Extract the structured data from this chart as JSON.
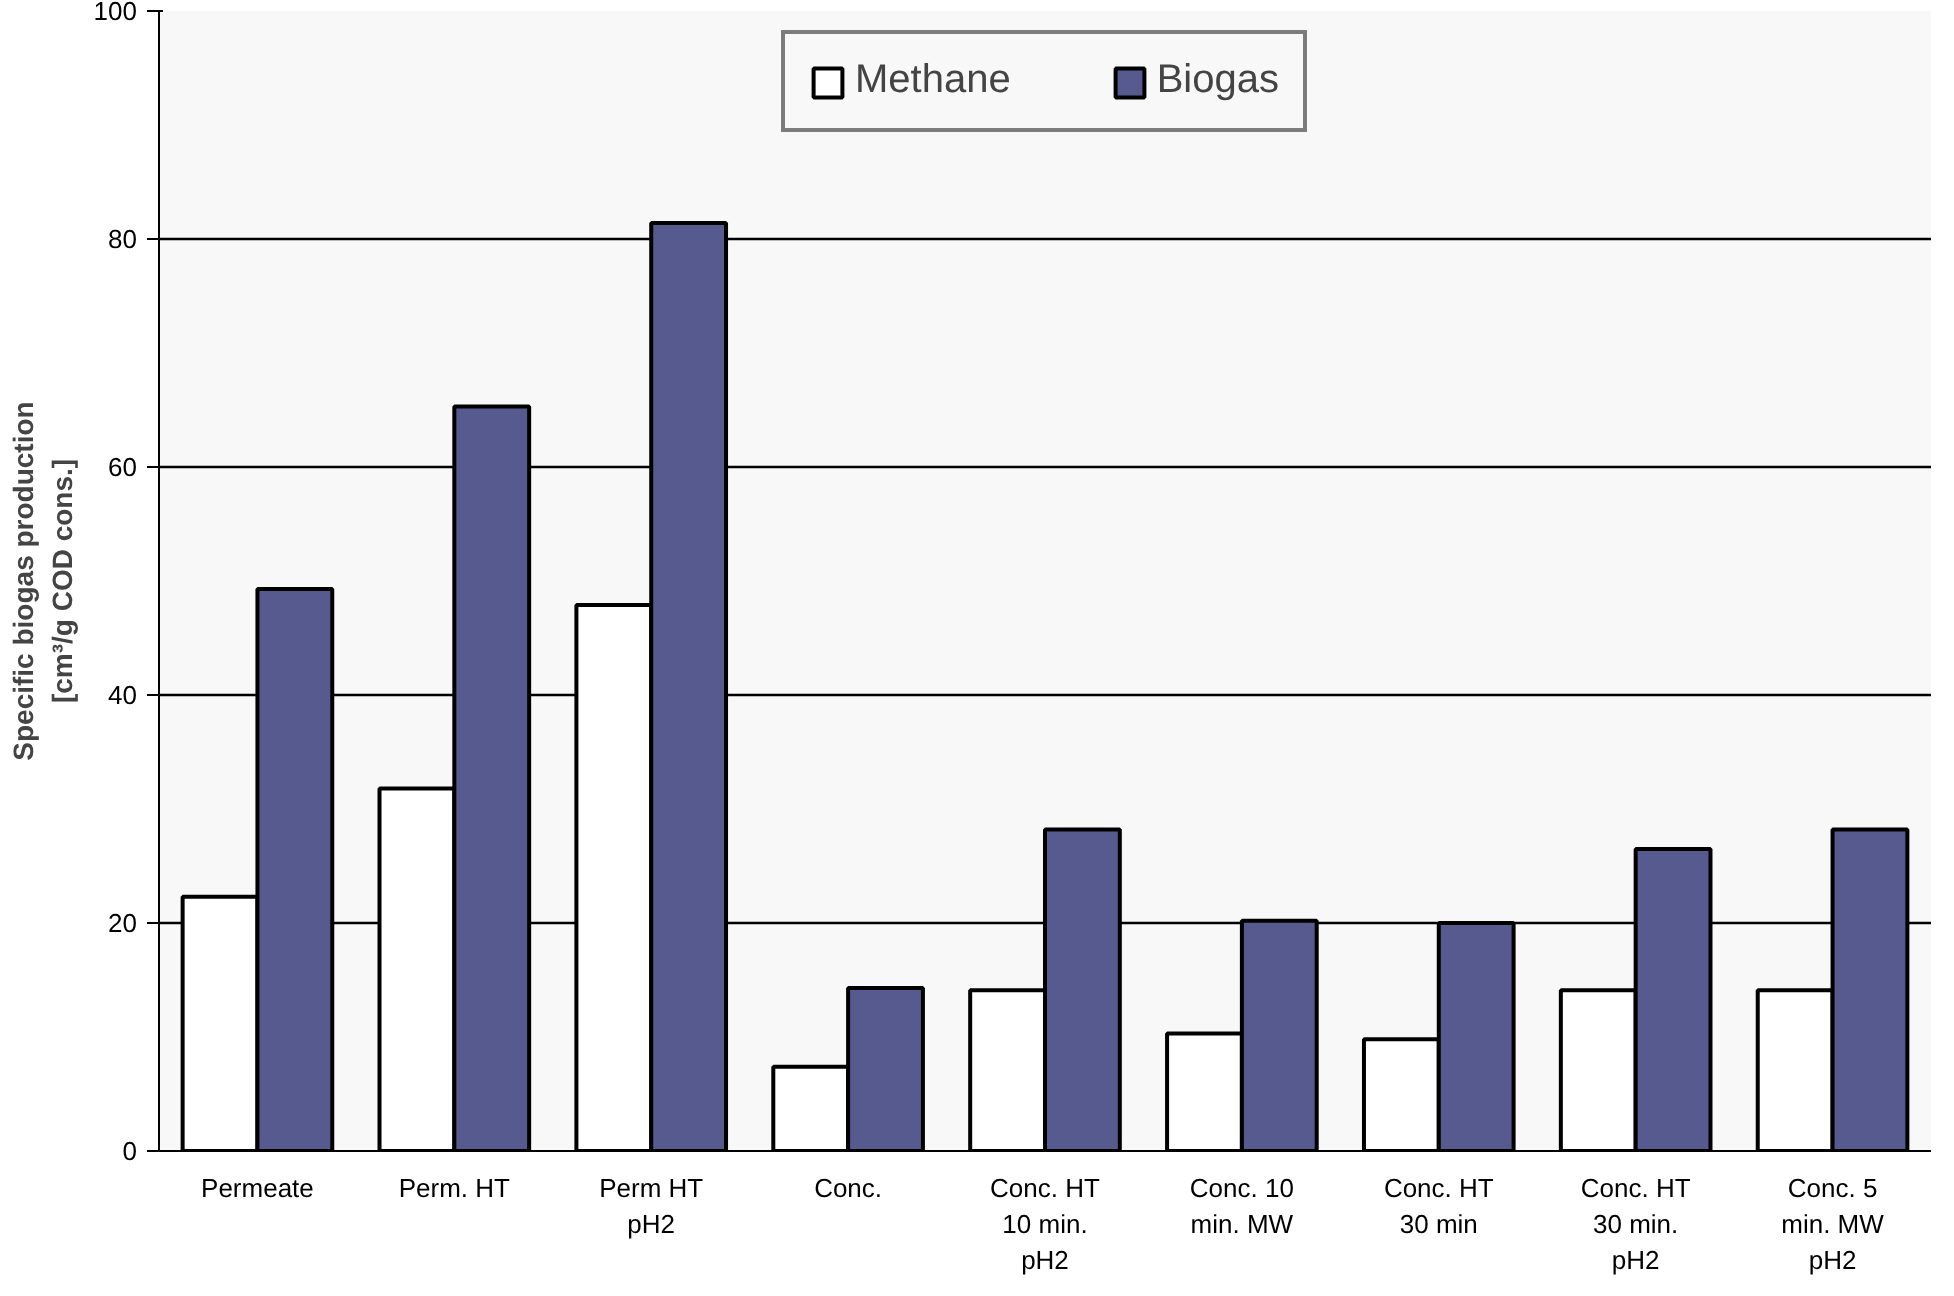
{
  "chart_data": {
    "type": "bar",
    "ylabel": "Specific biogas production [cm³/g COD cons.]",
    "categories": [
      "Permeate",
      "Perm. HT",
      "Perm HT pH2",
      "Conc.",
      "Conc. HT 10 min. pH2",
      "Conc. 10 min. MW",
      "Conc. HT 30 min",
      "Conc. HT 30 min. pH2",
      "Conc. 5 min. MW pH2"
    ],
    "series": [
      {
        "name": "Methane",
        "color": "#ffffff",
        "values": [
          22.3,
          31.8,
          47.9,
          7.4,
          14.1,
          10.3,
          9.8,
          14.1,
          14.1
        ]
      },
      {
        "name": "Biogas",
        "color": "#565a8e",
        "values": [
          49.3,
          65.3,
          81.4,
          14.3,
          28.2,
          20.2,
          20.0,
          26.5,
          28.2
        ]
      }
    ],
    "ylim": [
      0,
      100
    ],
    "yticks": [
      0,
      20,
      40,
      60,
      80,
      100
    ],
    "grid": "y",
    "legend": "top"
  }
}
